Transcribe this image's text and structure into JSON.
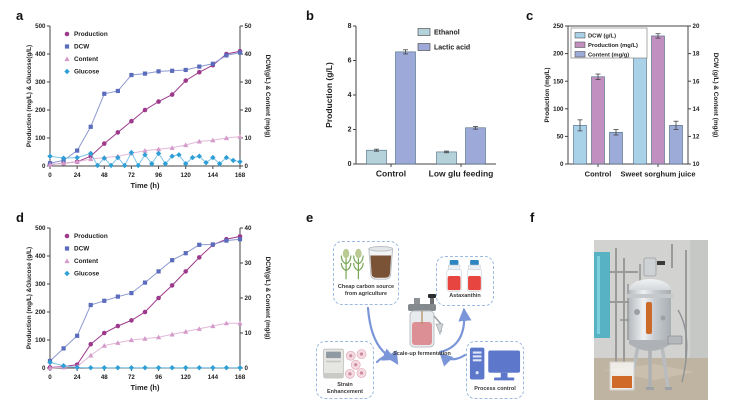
{
  "panels": {
    "a": {
      "label": "a"
    },
    "b": {
      "label": "b"
    },
    "c": {
      "label": "c"
    },
    "d": {
      "label": "d"
    },
    "e": {
      "label": "e"
    },
    "f": {
      "label": "f"
    }
  },
  "chart_data": [
    {
      "id": "a",
      "type": "line",
      "xlabel": "Time (h)",
      "ylabel_left": "Production (mg/L) & Glucose(g/L)",
      "ylabel_right": "DCW(g/L) & Content (mg/g)",
      "xlim": [
        0,
        168
      ],
      "xticks": [
        0,
        24,
        48,
        72,
        96,
        120,
        144,
        168
      ],
      "ylim_left": [
        0,
        500
      ],
      "yticks_left": [
        0,
        100,
        200,
        300,
        400,
        500
      ],
      "ylim_right": [
        0,
        50
      ],
      "yticks_right": [
        0,
        10,
        20,
        30,
        40,
        50
      ],
      "legend_position": "top-left",
      "series": [
        {
          "name": "Production",
          "axis": "left",
          "marker": "circle",
          "color": "#9e3a8c",
          "x": [
            0,
            12,
            24,
            36,
            48,
            60,
            72,
            84,
            96,
            108,
            120,
            132,
            144,
            156,
            168
          ],
          "y": [
            5,
            10,
            15,
            35,
            80,
            120,
            160,
            200,
            230,
            255,
            305,
            335,
            360,
            400,
            410
          ]
        },
        {
          "name": "DCW",
          "axis": "right",
          "marker": "square",
          "color": "#5a6cbb",
          "line_color": "#8d9ad1",
          "x": [
            0,
            12,
            24,
            36,
            48,
            60,
            72,
            84,
            96,
            108,
            120,
            132,
            144,
            156,
            168
          ],
          "y": [
            1,
            2,
            5.5,
            14,
            25.8,
            26.8,
            32.5,
            33,
            33.8,
            34,
            34.3,
            35.5,
            36.5,
            39.5,
            40.5
          ]
        },
        {
          "name": "Content",
          "axis": "right",
          "marker": "triangle",
          "color": "#d49ac9",
          "line_color": "#e2b8d8",
          "x": [
            0,
            12,
            24,
            36,
            48,
            60,
            72,
            84,
            96,
            108,
            120,
            132,
            144,
            156,
            168
          ],
          "y": [
            0.5,
            1,
            1.5,
            2.5,
            3,
            3.5,
            4.5,
            5.5,
            6,
            6.5,
            7.5,
            8.8,
            9.2,
            10,
            10.5
          ]
        },
        {
          "name": "Glucose",
          "axis": "left",
          "marker": "diamond",
          "color": "#2d9fd6",
          "line_color": "#7cc3e8",
          "x": [
            0,
            12,
            24,
            36,
            42,
            48,
            54,
            60,
            66,
            72,
            78,
            84,
            90,
            96,
            102,
            108,
            114,
            120,
            126,
            132,
            138,
            144,
            150,
            156,
            162,
            168
          ],
          "y": [
            35,
            28,
            30,
            45,
            2,
            28,
            2,
            30,
            2,
            48,
            2,
            40,
            8,
            45,
            8,
            35,
            40,
            8,
            30,
            35,
            12,
            30,
            8,
            30,
            20,
            15
          ]
        }
      ]
    },
    {
      "id": "b",
      "type": "bar",
      "ylabel_left": "Production (g/L)",
      "categories": [
        "Control",
        "Low glu feeding"
      ],
      "ylim_left": [
        0,
        8
      ],
      "yticks_left": [
        0,
        2,
        4,
        6,
        8
      ],
      "legend_position": "top-right",
      "series": [
        {
          "name": "Ethanol",
          "axis": "left",
          "color": "#b5d2da",
          "values": [
            0.8,
            0.7
          ],
          "errors": [
            0.06,
            0.05
          ]
        },
        {
          "name": "Lactic acid",
          "axis": "left",
          "color": "#9da9d9",
          "values": [
            6.5,
            2.1
          ],
          "errors": [
            0.12,
            0.08
          ]
        }
      ]
    },
    {
      "id": "c",
      "type": "bar",
      "ylabel_left": "Production (mg/L)",
      "ylabel_right": "DCW (g/L) & Content (mg/g)",
      "categories": [
        "Control",
        "Sweet sorghum juice"
      ],
      "ylim_left": [
        0,
        250
      ],
      "yticks_left": [
        0,
        50,
        100,
        150,
        200,
        250
      ],
      "ylim_right": [
        10,
        20
      ],
      "yticks_right": [
        10,
        12,
        14,
        16,
        18,
        20
      ],
      "legend_position": "top-left",
      "legend_box": true,
      "frame": "box",
      "series": [
        {
          "name": "DCW (g/L)",
          "axis": "right",
          "color": "#a9d2e9",
          "values": [
            12.8,
            18.1
          ],
          "errors": [
            0.4,
            0.2
          ]
        },
        {
          "name": "Production (mg/L)",
          "axis": "left",
          "color": "#c18fc0",
          "values": [
            158,
            232
          ],
          "errors": [
            5,
            4
          ]
        },
        {
          "name": "Content (mg/g)",
          "axis": "right",
          "color": "#9dabd9",
          "values": [
            12.3,
            12.8
          ],
          "errors": [
            0.2,
            0.3
          ]
        }
      ]
    },
    {
      "id": "d",
      "type": "line",
      "xlabel": "Time (h)",
      "ylabel_left": "Production (mg/L) &Glucose (g/L)",
      "ylabel_right": "DCW(g/L) & Content (mg/g)",
      "xlim": [
        0,
        168
      ],
      "xticks": [
        0,
        24,
        48,
        72,
        96,
        120,
        144,
        168
      ],
      "ylim_left": [
        0,
        500
      ],
      "yticks_left": [
        0,
        100,
        200,
        300,
        400,
        500
      ],
      "ylim_right": [
        0,
        40
      ],
      "yticks_right": [
        0,
        10,
        20,
        30,
        40
      ],
      "legend_position": "top-left",
      "series": [
        {
          "name": "Production",
          "axis": "left",
          "marker": "circle",
          "color": "#9e3a8c",
          "x": [
            0,
            12,
            24,
            36,
            48,
            60,
            72,
            84,
            96,
            108,
            120,
            132,
            144,
            156,
            168
          ],
          "y": [
            2,
            5,
            12,
            85,
            125,
            150,
            170,
            200,
            250,
            295,
            345,
            395,
            440,
            460,
            470
          ]
        },
        {
          "name": "DCW",
          "axis": "right",
          "marker": "square",
          "color": "#5a6cbb",
          "line_color": "#8d9ad1",
          "x": [
            0,
            12,
            24,
            36,
            48,
            60,
            72,
            84,
            96,
            108,
            120,
            132,
            144,
            156,
            168
          ],
          "y": [
            2,
            5.6,
            9.2,
            18,
            19.2,
            20.4,
            21.4,
            24.4,
            27.6,
            30.8,
            32.8,
            35.2,
            35.3,
            36.4,
            36.8
          ]
        },
        {
          "name": "Content",
          "axis": "right",
          "marker": "triangle",
          "color": "#d49ac9",
          "line_color": "#e2b8d8",
          "x": [
            0,
            12,
            24,
            36,
            48,
            60,
            72,
            84,
            96,
            108,
            120,
            132,
            144,
            156,
            168
          ],
          "y": [
            0,
            0.2,
            0.4,
            3.6,
            6.4,
            7.2,
            8,
            8.4,
            8.8,
            9.6,
            10.4,
            11.2,
            12,
            12.8,
            12.8
          ]
        },
        {
          "name": "Glucose",
          "axis": "left",
          "marker": "diamond",
          "color": "#2d9fd6",
          "line_color": "#7cc3e8",
          "x": [
            0,
            12,
            24,
            36,
            48,
            60,
            72,
            84,
            96,
            108,
            120,
            132,
            144,
            156,
            168
          ],
          "y": [
            20,
            8,
            2,
            1,
            1,
            1,
            1,
            1,
            1,
            1,
            1,
            1,
            1,
            1,
            1
          ]
        }
      ]
    }
  ],
  "diagram": {
    "carbon": {
      "line1": "Cheap carbon source",
      "line2": "from agriculture"
    },
    "strain": {
      "label": "Strain Enhancement"
    },
    "fermentation": {
      "label": "Scale-up fermentation"
    },
    "astaxanthin": {
      "label": "Astaxanthin"
    },
    "process": {
      "label": "Process control"
    },
    "arrow_color": "#7b96d8"
  }
}
